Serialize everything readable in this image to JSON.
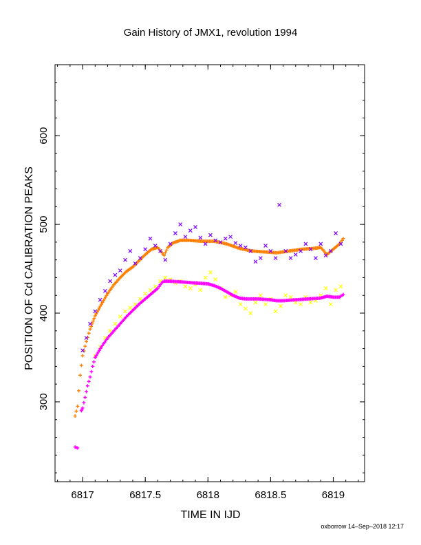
{
  "chart_data": {
    "type": "scatter",
    "title": "Gain History of JMX1, revolution 1994",
    "xlabel": "TIME IN IJD",
    "ylabel": "POSITION OF Cd CALIBRATION PEAKS",
    "xlim": [
      6816.78,
      6819.25
    ],
    "ylim": [
      210,
      680
    ],
    "x_ticks": [
      6817,
      6817.5,
      6818,
      6818.5,
      6819
    ],
    "x_tick_labels": [
      "6817",
      "6817.5",
      "6818",
      "6818.5",
      "6819"
    ],
    "y_ticks": [
      300,
      400,
      500,
      600
    ],
    "y_tick_labels": [
      "300",
      "400",
      "500",
      "600"
    ],
    "footer": "oxborrow 14–Sep–2018 12:17",
    "colors": {
      "orange": "#ff7f00",
      "purple": "#7f00ff",
      "yellow": "#ffff00",
      "magenta": "#ff00ff"
    },
    "series": [
      {
        "color": "orange",
        "marker": "plus",
        "style": "dense-trend",
        "x": [
          6816.94,
          6816.96,
          6816.98,
          6817.0,
          6817.03,
          6817.06,
          6817.1,
          6817.15,
          6817.2,
          6817.25,
          6817.3,
          6817.35,
          6817.4,
          6817.45,
          6817.5,
          6817.55,
          6817.6,
          6817.65,
          6817.68,
          6817.72,
          6817.78,
          6817.85,
          6817.95,
          6818.05,
          6818.15,
          6818.25,
          6818.35,
          6818.45,
          6818.55,
          6818.65,
          6818.75,
          6818.85,
          6818.9,
          6818.95,
          6819.0,
          6819.05,
          6819.08
        ],
        "y": [
          284,
          295,
          330,
          352,
          368,
          382,
          397,
          410,
          422,
          432,
          440,
          447,
          452,
          459,
          466,
          472,
          474,
          465,
          474,
          479,
          482,
          482,
          481,
          481,
          478,
          473,
          470,
          469,
          468,
          470,
          472,
          473,
          474,
          466,
          472,
          478,
          484
        ]
      },
      {
        "color": "purple",
        "marker": "x",
        "style": "scatter",
        "x": [
          6817.0,
          6817.03,
          6817.06,
          6817.1,
          6817.14,
          6817.18,
          6817.22,
          6817.26,
          6817.3,
          6817.34,
          6817.38,
          6817.42,
          6817.46,
          6817.5,
          6817.54,
          6817.58,
          6817.62,
          6817.66,
          6817.7,
          6817.74,
          6817.78,
          6817.82,
          6817.86,
          6817.9,
          6817.94,
          6817.98,
          6818.02,
          6818.06,
          6818.1,
          6818.14,
          6818.18,
          6818.22,
          6818.26,
          6818.3,
          6818.34,
          6818.38,
          6818.42,
          6818.46,
          6818.5,
          6818.54,
          6818.57,
          6818.62,
          6818.66,
          6818.7,
          6818.74,
          6818.78,
          6818.82,
          6818.86,
          6818.9,
          6818.94,
          6818.98,
          6819.02,
          6819.06
        ],
        "y": [
          358,
          372,
          388,
          402,
          415,
          425,
          436,
          443,
          448,
          460,
          470,
          456,
          462,
          472,
          484,
          476,
          470,
          460,
          478,
          490,
          500,
          486,
          493,
          497,
          485,
          478,
          488,
          482,
          480,
          484,
          486,
          479,
          476,
          474,
          470,
          458,
          462,
          476,
          470,
          462,
          522,
          470,
          462,
          466,
          470,
          478,
          472,
          462,
          478,
          465,
          470,
          490,
          478
        ]
      },
      {
        "color": "yellow",
        "marker": "x",
        "style": "scatter",
        "x": [
          6817.1,
          6817.14,
          6817.18,
          6817.22,
          6817.26,
          6817.3,
          6817.34,
          6817.38,
          6817.42,
          6817.46,
          6817.5,
          6817.54,
          6817.58,
          6817.62,
          6817.66,
          6817.7,
          6817.74,
          6817.78,
          6817.82,
          6817.86,
          6817.9,
          6817.94,
          6817.98,
          6818.02,
          6818.06,
          6818.1,
          6818.14,
          6818.18,
          6818.22,
          6818.26,
          6818.3,
          6818.34,
          6818.38,
          6818.42,
          6818.46,
          6818.5,
          6818.54,
          6818.58,
          6818.62,
          6818.66,
          6818.7,
          6818.74,
          6818.78,
          6818.82,
          6818.86,
          6818.9,
          6818.94,
          6818.98,
          6819.02,
          6819.06
        ],
        "y": [
          352,
          362,
          372,
          380,
          388,
          396,
          402,
          406,
          410,
          416,
          422,
          426,
          430,
          436,
          440,
          438,
          434,
          436,
          430,
          428,
          432,
          426,
          440,
          446,
          438,
          428,
          418,
          420,
          424,
          410,
          405,
          400,
          412,
          420,
          410,
          416,
          402,
          408,
          420,
          418,
          412,
          410,
          418,
          412,
          414,
          420,
          428,
          410,
          426,
          430
        ]
      },
      {
        "color": "magenta",
        "marker": "plus",
        "style": "dense-trend",
        "x": [
          6816.94,
          6816.96,
          6816.99,
          6817.0,
          6817.02,
          6817.04,
          6817.06,
          6817.08,
          6817.1,
          6817.15,
          6817.2,
          6817.25,
          6817.3,
          6817.35,
          6817.4,
          6817.45,
          6817.5,
          6817.55,
          6817.6,
          6817.63,
          6817.65,
          6817.7,
          6817.8,
          6817.9,
          6818.0,
          6818.05,
          6818.1,
          6818.15,
          6818.2,
          6818.25,
          6818.3,
          6818.4,
          6818.5,
          6818.55,
          6818.6,
          6818.7,
          6818.8,
          6818.9,
          6818.95,
          6819.0,
          6819.05,
          6819.08
        ],
        "y": [
          249,
          248,
          290,
          293,
          305,
          318,
          328,
          340,
          350,
          362,
          372,
          380,
          388,
          396,
          403,
          410,
          416,
          422,
          428,
          434,
          436,
          436,
          435,
          434,
          433,
          431,
          428,
          424,
          420,
          417,
          416,
          416,
          415,
          414,
          414,
          415,
          416,
          417,
          419,
          418,
          418,
          421
        ]
      }
    ]
  }
}
